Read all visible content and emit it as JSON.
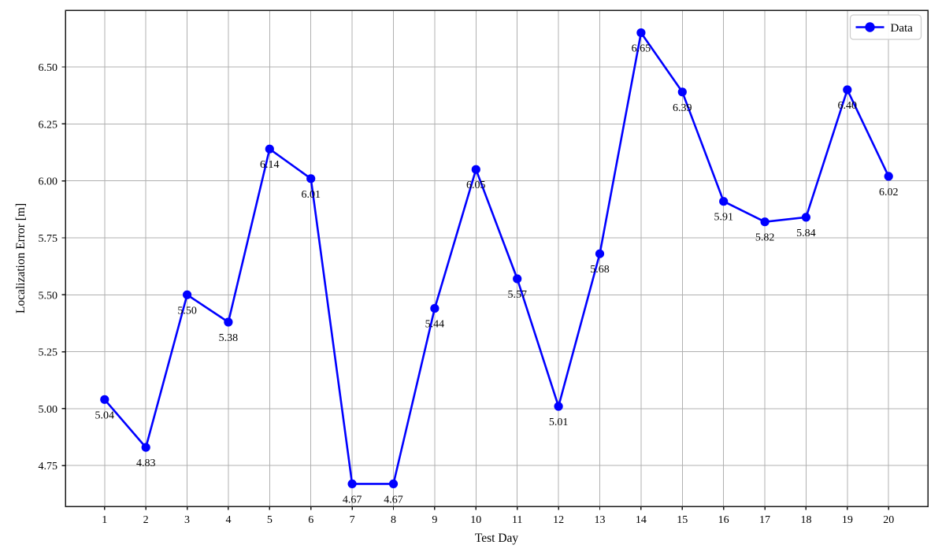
{
  "chart_data": {
    "type": "line",
    "x": [
      1,
      2,
      3,
      4,
      5,
      6,
      7,
      8,
      9,
      10,
      11,
      12,
      13,
      14,
      15,
      16,
      17,
      18,
      19,
      20
    ],
    "series": [
      {
        "name": "Data",
        "values": [
          5.04,
          4.83,
          5.5,
          5.38,
          6.14,
          6.01,
          4.67,
          4.67,
          5.44,
          6.05,
          5.57,
          5.01,
          5.68,
          6.65,
          6.39,
          5.91,
          5.82,
          5.84,
          6.4,
          6.02
        ]
      }
    ],
    "point_labels": [
      "5.04",
      "4.83",
      "5.50",
      "5.38",
      "6.14",
      "6.01",
      "4.67",
      "4.67",
      "5.44",
      "6.05",
      "5.57",
      "5.01",
      "5.68",
      "6.65",
      "6.39",
      "5.91",
      "5.82",
      "5.84",
      "6.40",
      "6.02"
    ],
    "title": "",
    "xlabel": "Test Day",
    "ylabel": "Localization Error [m]",
    "xlim": [
      0.05,
      20.95
    ],
    "ylim": [
      4.571,
      6.749
    ],
    "xticks": [
      1,
      2,
      3,
      4,
      5,
      6,
      7,
      8,
      9,
      10,
      11,
      12,
      13,
      14,
      15,
      16,
      17,
      18,
      19,
      20
    ],
    "xtick_labels": [
      "1",
      "2",
      "3",
      "4",
      "5",
      "6",
      "7",
      "8",
      "9",
      "10",
      "11",
      "12",
      "13",
      "14",
      "15",
      "16",
      "17",
      "18",
      "19",
      "20"
    ],
    "yticks": [
      4.75,
      5.0,
      5.25,
      5.5,
      5.75,
      6.0,
      6.25,
      6.5
    ],
    "ytick_labels": [
      "4.75",
      "5.00",
      "5.25",
      "5.50",
      "5.75",
      "6.00",
      "6.25",
      "6.50"
    ],
    "grid": true,
    "legend": {
      "position": "upper-right",
      "entries": [
        "Data"
      ]
    },
    "colors": {
      "line": "#0000ff",
      "marker": "#0000ff",
      "grid": "#b0b0b0",
      "spine": "#1a1a1a",
      "text": "#000000",
      "legend_border": "#cccccc",
      "legend_background": "#ffffff",
      "background": "#ffffff"
    }
  }
}
